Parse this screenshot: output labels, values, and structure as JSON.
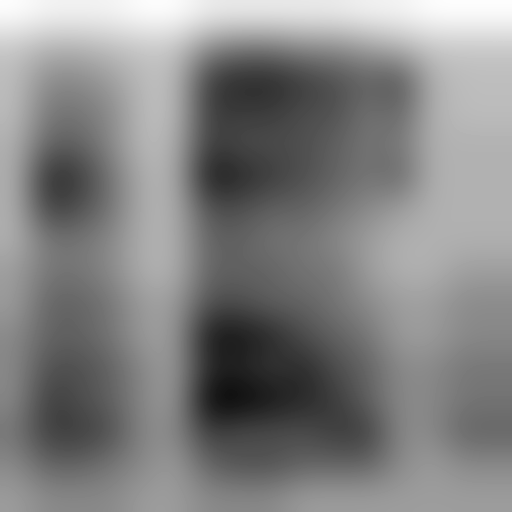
{
  "chart_data": {
    "type": "heatmap",
    "tick_labels": false,
    "cells": [
      [
        0.05,
        0.08,
        0.08,
        0.08,
        0.05,
        0.05,
        0.1,
        0.1,
        0.1,
        0.1,
        0.1,
        0.08,
        0.08,
        0.05,
        0.05,
        0.05
      ],
      [
        0.2,
        0.25,
        0.25,
        0.22,
        0.2,
        0.2,
        0.35,
        0.4,
        0.4,
        0.35,
        0.35,
        0.3,
        0.25,
        0.2,
        0.2,
        0.2
      ],
      [
        0.22,
        0.35,
        0.35,
        0.3,
        0.22,
        0.22,
        0.55,
        0.6,
        0.6,
        0.55,
        0.5,
        0.45,
        0.5,
        0.25,
        0.22,
        0.22
      ],
      [
        0.22,
        0.4,
        0.4,
        0.35,
        0.22,
        0.22,
        0.55,
        0.55,
        0.55,
        0.5,
        0.5,
        0.4,
        0.45,
        0.25,
        0.22,
        0.22
      ],
      [
        0.25,
        0.45,
        0.45,
        0.35,
        0.22,
        0.25,
        0.55,
        0.5,
        0.5,
        0.5,
        0.45,
        0.4,
        0.4,
        0.25,
        0.25,
        0.25
      ],
      [
        0.25,
        0.6,
        0.55,
        0.4,
        0.25,
        0.25,
        0.65,
        0.6,
        0.55,
        0.5,
        0.45,
        0.4,
        0.45,
        0.25,
        0.25,
        0.25
      ],
      [
        0.25,
        0.55,
        0.5,
        0.4,
        0.25,
        0.25,
        0.5,
        0.5,
        0.45,
        0.45,
        0.4,
        0.35,
        0.3,
        0.25,
        0.25,
        0.25
      ],
      [
        0.25,
        0.4,
        0.4,
        0.35,
        0.25,
        0.25,
        0.45,
        0.45,
        0.4,
        0.4,
        0.35,
        0.3,
        0.25,
        0.25,
        0.25,
        0.25
      ],
      [
        0.3,
        0.4,
        0.4,
        0.35,
        0.25,
        0.25,
        0.45,
        0.45,
        0.45,
        0.4,
        0.4,
        0.3,
        0.25,
        0.25,
        0.3,
        0.3
      ],
      [
        0.3,
        0.45,
        0.45,
        0.4,
        0.3,
        0.3,
        0.5,
        0.5,
        0.45,
        0.45,
        0.4,
        0.35,
        0.3,
        0.3,
        0.35,
        0.35
      ],
      [
        0.35,
        0.45,
        0.45,
        0.4,
        0.3,
        0.3,
        0.65,
        0.65,
        0.6,
        0.5,
        0.45,
        0.4,
        0.3,
        0.3,
        0.35,
        0.35
      ],
      [
        0.35,
        0.5,
        0.5,
        0.45,
        0.35,
        0.3,
        0.6,
        0.6,
        0.55,
        0.6,
        0.5,
        0.45,
        0.35,
        0.35,
        0.4,
        0.4
      ],
      [
        0.35,
        0.55,
        0.5,
        0.45,
        0.35,
        0.3,
        0.7,
        0.7,
        0.65,
        0.6,
        0.55,
        0.45,
        0.35,
        0.35,
        0.4,
        0.4
      ],
      [
        0.4,
        0.55,
        0.55,
        0.5,
        0.35,
        0.35,
        0.55,
        0.5,
        0.5,
        0.5,
        0.55,
        0.55,
        0.35,
        0.35,
        0.45,
        0.45
      ],
      [
        0.35,
        0.45,
        0.45,
        0.4,
        0.35,
        0.3,
        0.45,
        0.5,
        0.5,
        0.45,
        0.45,
        0.45,
        0.35,
        0.3,
        0.35,
        0.35
      ],
      [
        0.3,
        0.35,
        0.35,
        0.35,
        0.3,
        0.3,
        0.35,
        0.35,
        0.35,
        0.3,
        0.3,
        0.3,
        0.3,
        0.3,
        0.3,
        0.3
      ]
    ]
  }
}
